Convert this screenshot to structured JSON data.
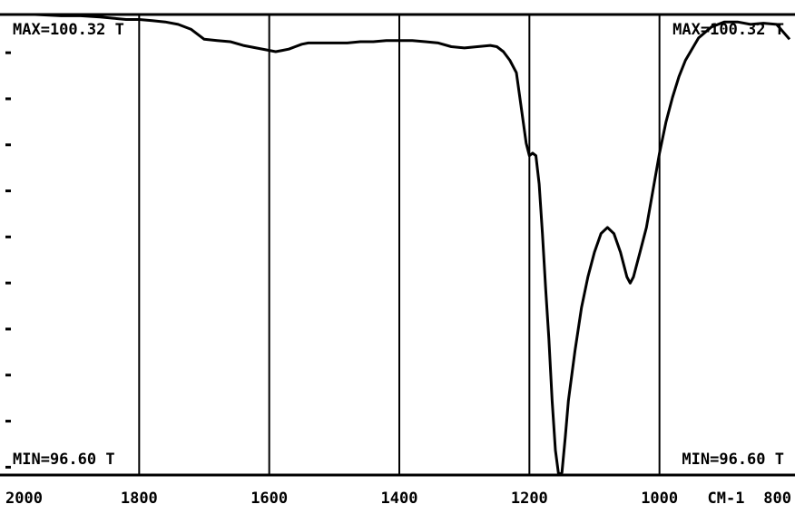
{
  "chart_data": {
    "type": "line",
    "title": "",
    "xlabel": "",
    "ylabel": "",
    "x_unit_label": "CM-1",
    "x_reversed": true,
    "xlim": [
      2000,
      800
    ],
    "ylim": [
      96.6,
      100.32
    ],
    "grid": "vertical",
    "x_ticks": [
      {
        "value": 2000,
        "label": "2000"
      },
      {
        "value": 1800,
        "label": "1800"
      },
      {
        "value": 1600,
        "label": "1600"
      },
      {
        "value": 1400,
        "label": "1400"
      },
      {
        "value": 1200,
        "label": "1200"
      },
      {
        "value": 1000,
        "label": "1000"
      },
      {
        "value": 800,
        "label": "800"
      }
    ],
    "gridlines_x": [
      1800,
      1600,
      1400,
      1200,
      1000
    ],
    "y_tick_count": 10,
    "annotations": {
      "max_left": "MAX=100.32 T",
      "max_right": "MAX=100.32 T",
      "min_left": "MIN=96.60 T",
      "min_right": "MIN=96.60 T"
    },
    "series": [
      {
        "x": [
          2000,
          1960,
          1920,
          1890,
          1860,
          1840,
          1820,
          1800,
          1780,
          1760,
          1740,
          1720,
          1700,
          1680,
          1660,
          1640,
          1620,
          1600,
          1590,
          1580,
          1570,
          1560,
          1550,
          1540,
          1530,
          1520,
          1500,
          1480,
          1460,
          1440,
          1420,
          1400,
          1380,
          1360,
          1340,
          1320,
          1300,
          1280,
          1260,
          1250,
          1240,
          1230,
          1220,
          1212,
          1205,
          1200,
          1195,
          1190,
          1185,
          1180,
          1175,
          1170,
          1165,
          1160,
          1155,
          1150,
          1145,
          1140,
          1130,
          1120,
          1110,
          1100,
          1090,
          1080,
          1070,
          1060,
          1050,
          1045,
          1040,
          1030,
          1020,
          1010,
          1000,
          990,
          980,
          970,
          960,
          940,
          920,
          900,
          880,
          860,
          840,
          820,
          800
        ],
        "y": [
          100.32,
          100.32,
          100.31,
          100.31,
          100.3,
          100.29,
          100.28,
          100.28,
          100.27,
          100.26,
          100.24,
          100.2,
          100.12,
          100.11,
          100.1,
          100.07,
          100.05,
          100.03,
          100.02,
          100.03,
          100.04,
          100.06,
          100.08,
          100.09,
          100.09,
          100.09,
          100.09,
          100.09,
          100.1,
          100.1,
          100.11,
          100.11,
          100.11,
          100.1,
          100.09,
          100.06,
          100.05,
          100.06,
          100.07,
          100.06,
          100.02,
          99.95,
          99.85,
          99.55,
          99.28,
          99.18,
          99.2,
          99.18,
          98.95,
          98.55,
          98.1,
          97.7,
          97.2,
          96.8,
          96.6,
          96.62,
          96.9,
          97.2,
          97.6,
          97.95,
          98.2,
          98.4,
          98.55,
          98.6,
          98.55,
          98.4,
          98.2,
          98.15,
          98.2,
          98.4,
          98.6,
          98.9,
          99.2,
          99.45,
          99.65,
          99.82,
          99.95,
          100.13,
          100.22,
          100.26,
          100.26,
          100.24,
          100.25,
          100.24,
          100.12
        ]
      }
    ]
  }
}
